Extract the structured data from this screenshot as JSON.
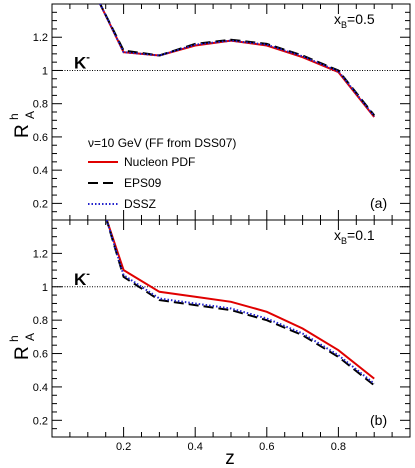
{
  "figure": {
    "xlabel": "z",
    "ylabel": "R",
    "ylabel_sup": "h",
    "ylabel_sub": "A",
    "hadron": "K",
    "hadron_charge": "-",
    "x_ticks": [
      0.2,
      0.4,
      0.6,
      0.8
    ],
    "x_tick_labels": [
      "0.2",
      "0.4",
      "0.6",
      "0.8"
    ]
  },
  "legend": {
    "header": "ν=10 GeV (FF from DSS07)",
    "entries": [
      {
        "label": "Nucleon PDF",
        "color": "#e00000",
        "style": "solid"
      },
      {
        "label": "EPS09",
        "color": "#000000",
        "style": "longdash"
      },
      {
        "label": "DSSZ",
        "color": "#2222cc",
        "style": "dotted"
      }
    ]
  },
  "chart_data": [
    {
      "type": "line",
      "panel_label": "(a)",
      "xb_label": "x",
      "xb_sub": "B",
      "xb_value": "=0.5",
      "xlim": [
        0,
        1.0
      ],
      "ylim": [
        0.1,
        1.4
      ],
      "y_ticks": [
        0.2,
        0.4,
        0.6,
        0.8,
        1.0,
        1.2
      ],
      "y_tick_labels": [
        "0.2",
        "0.4",
        "0.6",
        "0.8",
        "1",
        "1.2"
      ],
      "reference_line": 1.0,
      "x": [
        0.13,
        0.2,
        0.3,
        0.4,
        0.5,
        0.6,
        0.7,
        0.8,
        0.9
      ],
      "series": [
        {
          "name": "Nucleon PDF",
          "values": [
            1.42,
            1.11,
            1.09,
            1.15,
            1.18,
            1.15,
            1.08,
            0.99,
            0.72
          ]
        },
        {
          "name": "EPS09",
          "values": [
            1.42,
            1.12,
            1.09,
            1.16,
            1.185,
            1.16,
            1.09,
            1.0,
            0.73
          ]
        },
        {
          "name": "DSSZ",
          "values": [
            1.42,
            1.11,
            1.09,
            1.155,
            1.18,
            1.155,
            1.085,
            0.995,
            0.725
          ]
        }
      ]
    },
    {
      "type": "line",
      "panel_label": "(b)",
      "xb_label": "x",
      "xb_sub": "B",
      "xb_value": "=0.1",
      "xlim": [
        0,
        1.0
      ],
      "ylim": [
        0.1,
        1.4
      ],
      "y_ticks": [
        0.2,
        0.4,
        0.6,
        0.8,
        1.0,
        1.2
      ],
      "y_tick_labels": [
        "0.2",
        "0.4",
        "0.6",
        "0.8",
        "1",
        "1.2"
      ],
      "reference_line": 1.0,
      "x": [
        0.15,
        0.2,
        0.3,
        0.4,
        0.5,
        0.6,
        0.7,
        0.8,
        0.9
      ],
      "series": [
        {
          "name": "Nucleon PDF",
          "values": [
            1.42,
            1.1,
            0.97,
            0.94,
            0.91,
            0.85,
            0.75,
            0.62,
            0.45
          ]
        },
        {
          "name": "EPS09",
          "values": [
            1.42,
            1.06,
            0.92,
            0.89,
            0.86,
            0.8,
            0.71,
            0.58,
            0.41
          ]
        },
        {
          "name": "DSSZ",
          "values": [
            1.42,
            1.07,
            0.93,
            0.9,
            0.87,
            0.81,
            0.72,
            0.59,
            0.42
          ]
        }
      ]
    }
  ]
}
